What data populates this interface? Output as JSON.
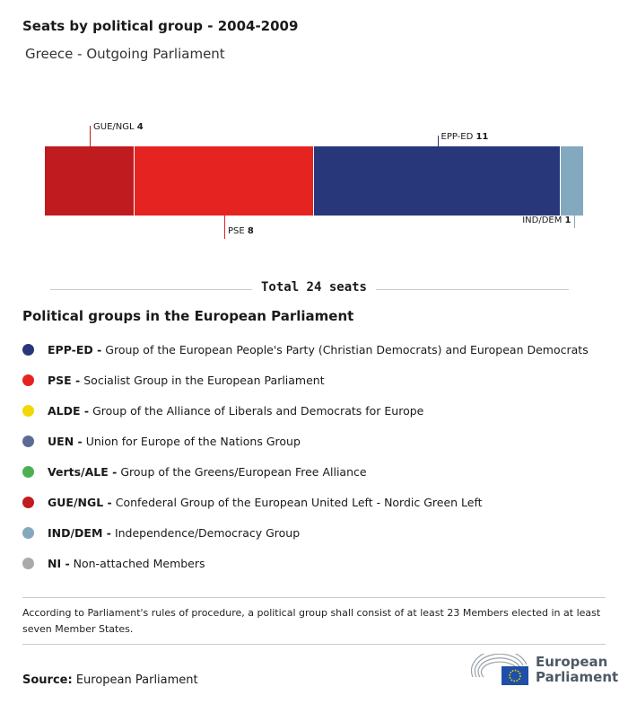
{
  "title": "Seats by political group - 2004-2009",
  "subtitle": "Greece - Outgoing Parliament",
  "chart_data": {
    "type": "bar",
    "orientation": "horizontal-stacked",
    "categories": [
      "GUE/NGL",
      "PSE",
      "EPP-ED",
      "IND/DEM"
    ],
    "values": [
      4,
      8,
      11,
      1
    ],
    "colors": [
      "#c01b1e",
      "#e52421",
      "#283779",
      "#83a9bf"
    ],
    "total_label": "Total 24 seats",
    "total": 24
  },
  "legend_heading": "Political groups in the European Parliament",
  "legend": [
    {
      "abbr": "EPP-ED -",
      "name": "Group of the European People's Party (Christian Democrats) and European Democrats",
      "color": "#283779"
    },
    {
      "abbr": "PSE -",
      "name": "Socialist Group in the European Parliament",
      "color": "#e52421"
    },
    {
      "abbr": "ALDE -",
      "name": "Group of the Alliance of Liberals and Democrats for Europe",
      "color": "#f0d800"
    },
    {
      "abbr": "UEN -",
      "name": "Union for Europe of the Nations Group",
      "color": "#5b6b96"
    },
    {
      "abbr": "Verts/ALE -",
      "name": "Group of the Greens/European Free Alliance",
      "color": "#4caf50"
    },
    {
      "abbr": "GUE/NGL -",
      "name": "Confederal Group of the European United Left - Nordic Green Left",
      "color": "#c01b1e"
    },
    {
      "abbr": "IND/DEM -",
      "name": "Independence/Democracy Group",
      "color": "#83a9bf"
    },
    {
      "abbr": "NI -",
      "name": "Non-attached Members",
      "color": "#aaaaaa"
    }
  ],
  "note": "According to Parliament's rules of procedure, a political group shall consist of at least 23 Members elected in at least seven Member States.",
  "source_label": "Source:",
  "source": "European Parliament",
  "logo": {
    "line1": "European",
    "line2": "Parliament"
  }
}
